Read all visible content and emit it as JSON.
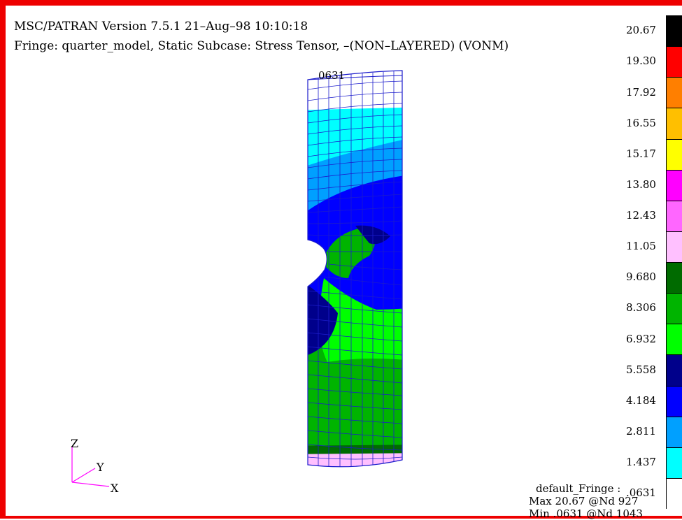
{
  "header": {
    "title": "MSC/PATRAN Version 7.5.1 21–Aug–98 10:10:18",
    "subtitle": "Fringe: quarter_model, Static Subcase: Stress Tensor, –(NON–LAYERED) (VONM)"
  },
  "model": {
    "max_node_label": "0631"
  },
  "legend": {
    "values": [
      "20.67",
      "19.30",
      "17.92",
      "16.55",
      "15.17",
      "13.80",
      "12.43",
      "11.05",
      "9.680",
      "8.306",
      "6.932",
      "5.558",
      "4.184",
      "2.811",
      "1.437",
      ".0631"
    ],
    "colors": [
      "#000000",
      "#ff0000",
      "#ff7f00",
      "#ffbf00",
      "#ffff00",
      "#ff00ff",
      "#ff66ff",
      "#ffc0ff",
      "#006b00",
      "#00b400",
      "#00ff00",
      "#00008b",
      "#0000ff",
      "#00a0ff",
      "#00ffff",
      "#ffffff"
    ]
  },
  "axes": {
    "z": "Z",
    "y": "Y",
    "x": "X"
  },
  "fringe_info": {
    "name": "default_Fringe :",
    "max": "Max 20.67 @Nd 927",
    "min": "Min .0631 @Nd 1043"
  }
}
